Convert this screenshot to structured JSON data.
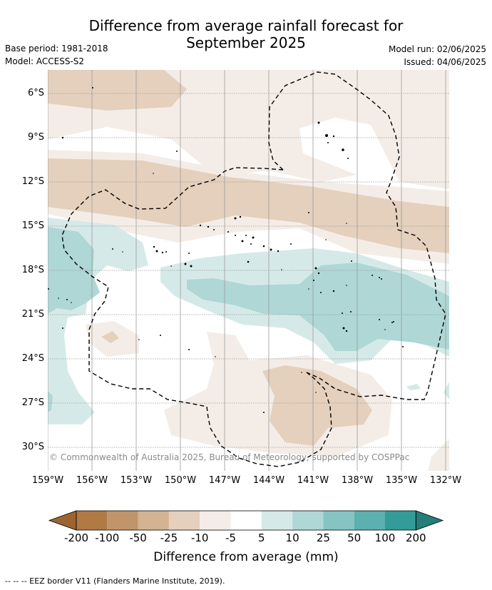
{
  "title_line1": "Difference from average rainfall forecast for",
  "title_line2": "September 2025",
  "base_period": "Base period: 1981-2018",
  "model": "Model: ACCESS-S2",
  "model_run": "Model run: 02/06/2025",
  "issued": "Issued: 04/06/2025",
  "lat_labels": [
    "6°S",
    "9°S",
    "12°S",
    "15°S",
    "18°S",
    "21°S",
    "24°S",
    "27°S",
    "30°S"
  ],
  "lon_labels": [
    "159°W",
    "156°W",
    "153°W",
    "150°W",
    "147°W",
    "144°W",
    "141°W",
    "138°W",
    "135°W",
    "132°W"
  ],
  "credit": "© Commonwealth of Australia 2025, Bureau of Meteorology, supported by COSPPac",
  "colorbar": {
    "ticks": [
      "-200",
      "-100",
      "-50",
      "-25",
      "-10",
      "-5",
      "5",
      "10",
      "25",
      "50",
      "100",
      "200"
    ],
    "colors": [
      "#b07a44",
      "#c1956a",
      "#d3b392",
      "#e4d0bd",
      "#f4ede7",
      "#ffffff",
      "#d5eae8",
      "#aed7d6",
      "#85c4c3",
      "#5cb0ae",
      "#339b98"
    ],
    "low_extend_color": "#9d6432",
    "high_extend_color": "#237e7a",
    "label": "Difference from average (mm)"
  },
  "legend_text": "--  --  -- EEZ border V11 (Flanders Marine Institute, 2019).",
  "colors": {
    "grid": "#9a9a9a",
    "border": "#000000"
  }
}
